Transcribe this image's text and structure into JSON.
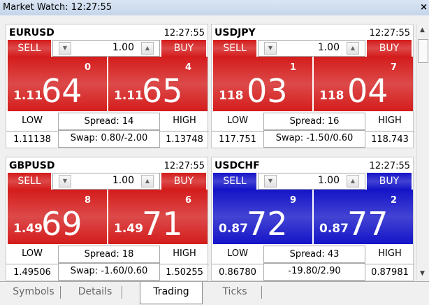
{
  "header": {
    "title": "Market Watch: 12:27:55",
    "close": "×"
  },
  "panels": [
    {
      "symbol": "EURUSD",
      "time": "12:27:55",
      "sell": "SELL",
      "buy": "BUY",
      "lot": "1.00",
      "color": "#d41c1c",
      "bid": {
        "prefix": "1.11",
        "big": "64",
        "sup": "0"
      },
      "ask": {
        "prefix": "1.11",
        "big": "65",
        "sup": "4"
      },
      "low_label": "LOW",
      "spread": "Spread: 14",
      "high_label": "HIGH",
      "low": "1.11138",
      "swap": "Swap: 0.80/-2.00",
      "high": "1.13748"
    },
    {
      "symbol": "USDJPY",
      "time": "12:27:55",
      "sell": "SELL",
      "buy": "BUY",
      "lot": "1.00",
      "color": "#d41c1c",
      "bid": {
        "prefix": "118",
        "big": "03",
        "sup": "1"
      },
      "ask": {
        "prefix": "118",
        "big": "04",
        "sup": "7"
      },
      "low_label": "LOW",
      "spread": "Spread: 16",
      "high_label": "HIGH",
      "low": "117.751",
      "swap": "Swap: -1.50/0.60",
      "high": "118.743"
    },
    {
      "symbol": "GBPUSD",
      "time": "12:27:55",
      "sell": "SELL",
      "buy": "BUY",
      "lot": "1.00",
      "color": "#d41c1c",
      "bid": {
        "prefix": "1.49",
        "big": "69",
        "sup": "8"
      },
      "ask": {
        "prefix": "1.49",
        "big": "71",
        "sup": "6"
      },
      "low_label": "LOW",
      "spread": "Spread: 18",
      "high_label": "HIGH",
      "low": "1.49506",
      "swap": "Swap: -1.60/0.60",
      "high": "1.50255"
    },
    {
      "symbol": "USDCHF",
      "time": "12:27:55",
      "sell": "SELL",
      "buy": "BUY",
      "lot": "1.00",
      "color": "#1414c8",
      "bid": {
        "prefix": "0.87",
        "big": "72",
        "sup": "9"
      },
      "ask": {
        "prefix": "0.87",
        "big": "77",
        "sup": "2"
      },
      "low_label": "LOW",
      "spread": "Spread: 43",
      "high_label": "HIGH",
      "low": "0.86780",
      "swap": "-19.80/2.90",
      "high": "0.87981"
    }
  ],
  "tabs": [
    "Symbols",
    "Details",
    "Trading",
    "Ticks"
  ],
  "active_tab": "Trading"
}
